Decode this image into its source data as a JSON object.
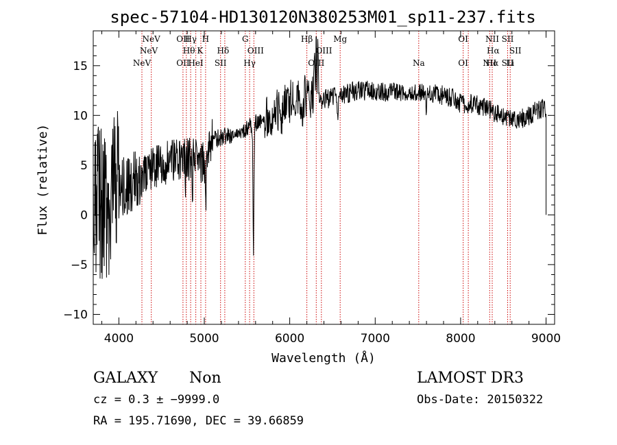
{
  "chart_data": {
    "type": "line",
    "title": "spec-57104-HD130120N380253M01_sp11-237.fits",
    "xlabel": "Wavelength (Å)",
    "ylabel": "Flux (relative)",
    "xlim": [
      3700,
      9100
    ],
    "ylim": [
      -11,
      18.5
    ],
    "x_ticks": [
      4000,
      5000,
      6000,
      7000,
      8000,
      9000
    ],
    "x_tick_labels": [
      "4000",
      "5000",
      "6000",
      "7000",
      "8000",
      "9000"
    ],
    "y_ticks": [
      -10,
      -5,
      0,
      5,
      10,
      15
    ],
    "y_tick_labels": [
      "−10",
      "−5",
      "0",
      "5",
      "10",
      "15"
    ],
    "continuum": [
      [
        3700,
        1.5
      ],
      [
        3800,
        1.2
      ],
      [
        3900,
        2.0
      ],
      [
        4000,
        2.6
      ],
      [
        4100,
        3.0
      ],
      [
        4200,
        3.6
      ],
      [
        4300,
        4.2
      ],
      [
        4400,
        4.7
      ],
      [
        4500,
        5.0
      ],
      [
        4600,
        5.5
      ],
      [
        4700,
        5.6
      ],
      [
        4800,
        5.6
      ],
      [
        4900,
        5.6
      ],
      [
        5000,
        5.2
      ],
      [
        5080,
        7.5
      ],
      [
        5200,
        7.8
      ],
      [
        5300,
        8.0
      ],
      [
        5400,
        8.2
      ],
      [
        5500,
        8.6
      ],
      [
        5600,
        9.2
      ],
      [
        5700,
        9.5
      ],
      [
        5800,
        10.3
      ],
      [
        5900,
        11.0
      ],
      [
        6000,
        11.5
      ],
      [
        6100,
        11.8
      ],
      [
        6200,
        11.8
      ],
      [
        6300,
        11.7
      ],
      [
        6400,
        11.6
      ],
      [
        6500,
        11.8
      ],
      [
        6600,
        12.0
      ],
      [
        6700,
        12.3
      ],
      [
        6800,
        12.5
      ],
      [
        6900,
        12.5
      ],
      [
        7000,
        12.5
      ],
      [
        7100,
        12.4
      ],
      [
        7200,
        12.3
      ],
      [
        7300,
        12.4
      ],
      [
        7400,
        12.5
      ],
      [
        7500,
        12.2
      ],
      [
        7600,
        12.4
      ],
      [
        7700,
        12.2
      ],
      [
        7800,
        12.0
      ],
      [
        7900,
        11.8
      ],
      [
        8000,
        11.2
      ],
      [
        8100,
        11.2
      ],
      [
        8200,
        11.0
      ],
      [
        8300,
        10.8
      ],
      [
        8400,
        10.3
      ],
      [
        8500,
        9.8
      ],
      [
        8600,
        9.6
      ],
      [
        8700,
        9.6
      ],
      [
        8800,
        10.0
      ],
      [
        8900,
        10.6
      ],
      [
        9000,
        10.8
      ]
    ],
    "features": [
      {
        "w": 6290,
        "d": 6.0,
        "s": 6
      },
      {
        "w": 6310,
        "d": 7.5,
        "s": 5
      },
      {
        "w": 6330,
        "d": 6.5,
        "s": 6
      },
      {
        "w": 5575,
        "d": -12.8,
        "s": 8
      },
      {
        "w": 4780,
        "d": -2.5,
        "s": 6
      },
      {
        "w": 4860,
        "d": -3.0,
        "s": 6
      },
      {
        "w": 5020,
        "d": -3.2,
        "s": 10
      },
      {
        "w": 6560,
        "d": -2.5,
        "s": 8
      },
      {
        "w": 7600,
        "d": -2.0,
        "s": 8
      },
      {
        "w": 5900,
        "d": -2.0,
        "s": 8
      },
      {
        "w": 6000,
        "d": -1.5,
        "s": 6
      },
      {
        "w": 6150,
        "d": -1.5,
        "s": 6
      }
    ],
    "noise": [
      {
        "from": 3700,
        "to": 4000,
        "amp": 8.0
      },
      {
        "from": 4000,
        "to": 4250,
        "amp": 3.0
      },
      {
        "from": 4250,
        "to": 5100,
        "amp": 2.2
      },
      {
        "from": 5100,
        "to": 5700,
        "amp": 0.9
      },
      {
        "from": 5700,
        "to": 6300,
        "amp": 2.3
      },
      {
        "from": 6300,
        "to": 9000,
        "amp": 1.0
      }
    ],
    "end_drop": {
      "w": 9000,
      "to": 0
    },
    "emission_lines": [
      {
        "w": 4270,
        "top": "",
        "bottom": "NeV"
      },
      {
        "w": 4380,
        "top": "NeV",
        "bottom": ""
      },
      {
        "w": 4750,
        "top": "OII",
        "bottom": "OII"
      },
      {
        "w": 4790,
        "top": "",
        "bottom": ""
      },
      {
        "w": 4840,
        "top": "Hγ",
        "bottom": ""
      },
      {
        "w": 4900,
        "top": "",
        "bottom": "HeI"
      },
      {
        "w": 4960,
        "top": "",
        "bottom": ""
      },
      {
        "w": 5015,
        "top": "H",
        "bottom": ""
      },
      {
        "w": 5190,
        "top": "",
        "bottom": "SII"
      },
      {
        "w": 5240,
        "top": "",
        "bottom": ""
      },
      {
        "w": 5480,
        "top": "G",
        "bottom": ""
      },
      {
        "w": 5530,
        "top": "",
        "bottom": "Hγ"
      },
      {
        "w": 5580,
        "top": "",
        "bottom": ""
      },
      {
        "w": 6200,
        "top": "Hβ",
        "bottom": ""
      },
      {
        "w": 6310,
        "top": "",
        "bottom": "OIII"
      },
      {
        "w": 6370,
        "top": "",
        "bottom": ""
      },
      {
        "w": 6590,
        "top": "Mg",
        "bottom": ""
      },
      {
        "w": 7510,
        "top": "",
        "bottom": "Na"
      },
      {
        "w": 8030,
        "top": "OI",
        "bottom": "OI"
      },
      {
        "w": 8090,
        "top": "",
        "bottom": ""
      },
      {
        "w": 8340,
        "top": "",
        "bottom": "NII"
      },
      {
        "w": 8370,
        "top": "NII",
        "bottom": "Hα"
      },
      {
        "w": 8550,
        "top": "SII",
        "bottom": "SII"
      },
      {
        "w": 8580,
        "top": "",
        "bottom": "Li"
      }
    ],
    "upper_labels": [
      {
        "w": 4350,
        "text": "NeV"
      },
      {
        "w": 4820,
        "text": "Hθ"
      },
      {
        "w": 4950,
        "text": "K"
      },
      {
        "w": 5220,
        "text": "Hδ"
      },
      {
        "w": 5600,
        "text": "OIII"
      },
      {
        "w": 6400,
        "text": "OIII"
      },
      {
        "w": 8380,
        "text": "Hα"
      },
      {
        "w": 8640,
        "text": "SII"
      }
    ]
  },
  "footer": {
    "class_label": "GALAXY",
    "subclass_label": "Non",
    "survey_label": "LAMOST DR3",
    "cz_text": "cz = 0.3 ± −9999.0",
    "obsdate_text": "Obs-Date: 20150322",
    "radec_text": "RA = 195.71690, DEC =  39.66859"
  }
}
